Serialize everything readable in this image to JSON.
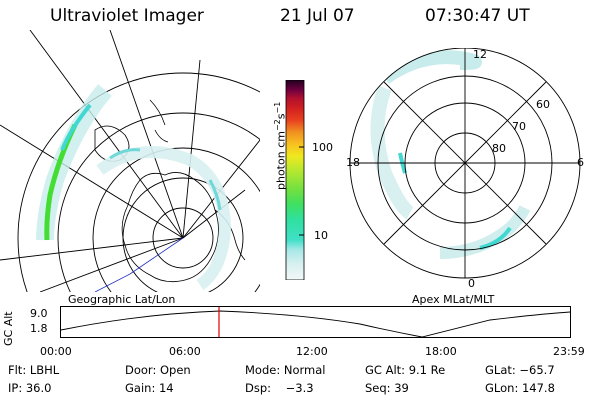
{
  "header": {
    "instrument": "Ultraviolet Imager",
    "date": "21 Jul 07",
    "time": "07:30:47 UT"
  },
  "left_panel": {
    "label": "Geographic Lat/Lon"
  },
  "right_panel": {
    "label": "Apex MLat/MLT",
    "mlt_labels": {
      "top": "12",
      "left": "18",
      "right": "6",
      "bottom": "0"
    },
    "lat_labels": [
      "60",
      "70",
      "80"
    ]
  },
  "colorbar": {
    "unit_text": "photon cm",
    "unit_sup1": "−2",
    "unit_mid": "s",
    "unit_sup2": "−1",
    "ticks": [
      "100",
      "10"
    ],
    "colors": [
      "#f2f8f8",
      "#d8f0f0",
      "#a8e8e8",
      "#40e0c8",
      "#30e0a0",
      "#40e060",
      "#70e040",
      "#b8e830",
      "#f0e820",
      "#f8c020",
      "#f09020",
      "#e84020",
      "#d02020",
      "#b01030",
      "#900040",
      "#600040",
      "#200020"
    ]
  },
  "timeline": {
    "axis_label": "GC Alt",
    "y_labels": [
      "9.0",
      "1.8"
    ],
    "x_labels": [
      "00:00",
      "06:00",
      "12:00",
      "18:00",
      "23:59"
    ],
    "marker_color": "#e00000"
  },
  "info": {
    "row1": {
      "flt": "Flt: LBHL",
      "door": "Door: Open",
      "mode": "Mode: Normal",
      "gcalt": "GC Alt: 9.1 Re",
      "glat": "GLat: −65.7"
    },
    "row2": {
      "ip": "IP: 36.0",
      "gain": "Gain: 14",
      "dsp": "Dsp:    −3.3",
      "seq": "Seq: 39",
      "glon": "GLon: 147.8"
    }
  }
}
